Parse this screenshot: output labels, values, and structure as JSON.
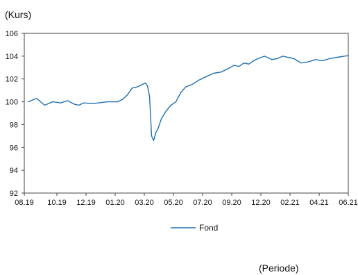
{
  "chart_data": {
    "type": "line",
    "ylabel": "(Kurs)",
    "xlabel": "(Periode)",
    "ylim": [
      92,
      106
    ],
    "yticks": [
      92,
      94,
      96,
      98,
      100,
      102,
      104,
      106
    ],
    "xticks": [
      "08.19",
      "10.19",
      "12.19",
      "01.20",
      "03.20",
      "05.20",
      "07.20",
      "09.20",
      "12.20",
      "02.21",
      "04.21",
      "06.21"
    ],
    "grid": false,
    "legend_position": "bottom-center",
    "series": [
      {
        "name": "Fond",
        "color": "#1f6fb2",
        "x": [
          "08.19",
          "08.19",
          "09.19",
          "09.19",
          "10.19",
          "10.19",
          "11.19",
          "11.19",
          "11.19",
          "12.19",
          "12.19",
          "01.20",
          "01.20",
          "01.20",
          "02.20",
          "02.20",
          "02.20",
          "03.20",
          "03.20",
          "03.20",
          "03.20",
          "03.20",
          "03.20",
          "03.20",
          "04.20",
          "04.20",
          "04.20",
          "05.20",
          "05.20",
          "05.20",
          "06.20",
          "06.20",
          "07.20",
          "07.20",
          "08.20",
          "08.20",
          "09.20",
          "09.20",
          "10.20",
          "10.20",
          "11.20",
          "11.20",
          "12.20",
          "12.20",
          "01.21",
          "01.21",
          "01.21",
          "02.21",
          "02.21",
          "03.21",
          "03.21",
          "04.21",
          "04.21",
          "05.21",
          "05.21",
          "06.21",
          "06.21"
        ],
        "values": [
          100.0,
          100.3,
          99.7,
          100.0,
          99.9,
          100.1,
          99.8,
          99.7,
          99.9,
          99.85,
          100.0,
          100.0,
          100.2,
          100.6,
          101.2,
          101.3,
          101.5,
          101.65,
          101.4,
          100.5,
          97.0,
          96.6,
          97.3,
          97.6,
          98.5,
          99.2,
          99.7,
          100.0,
          100.8,
          101.3,
          101.5,
          101.9,
          102.2,
          102.5,
          102.6,
          102.9,
          103.2,
          103.1,
          103.4,
          103.3,
          103.6,
          103.8,
          104.0,
          103.7,
          103.8,
          104.0,
          103.9,
          103.8,
          103.4,
          103.5,
          103.7,
          103.6,
          103.8,
          103.9,
          104.0,
          104.05,
          104.0
        ]
      }
    ]
  }
}
